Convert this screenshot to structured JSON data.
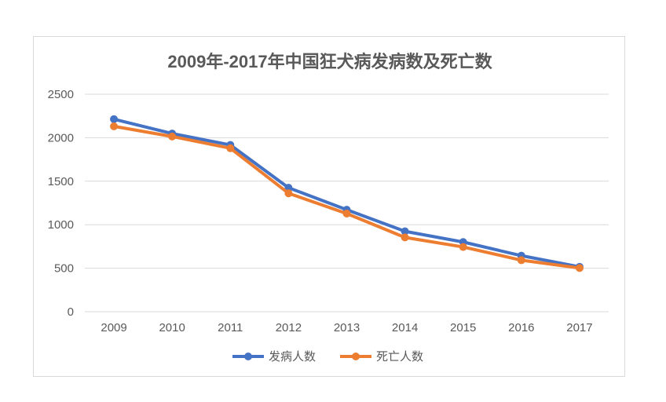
{
  "chart_data": {
    "type": "line",
    "title": "2009年-2017年中国狂犬病发病数及死亡数",
    "categories": [
      "2009",
      "2010",
      "2011",
      "2012",
      "2013",
      "2014",
      "2015",
      "2016",
      "2017"
    ],
    "series": [
      {
        "name": "发病人数",
        "color": "#4472C4",
        "values": [
          2213,
          2048,
          1917,
          1425,
          1172,
          924,
          801,
          644,
          516
        ]
      },
      {
        "name": "死亡人数",
        "color": "#ED7D31",
        "values": [
          2131,
          2014,
          1879,
          1361,
          1128,
          854,
          744,
          592,
          502
        ]
      }
    ],
    "ylim": [
      0,
      2500
    ],
    "yticks": [
      "0",
      "500",
      "1000",
      "1500",
      "2000",
      "2500"
    ],
    "grid": true,
    "legend": "bottom"
  }
}
